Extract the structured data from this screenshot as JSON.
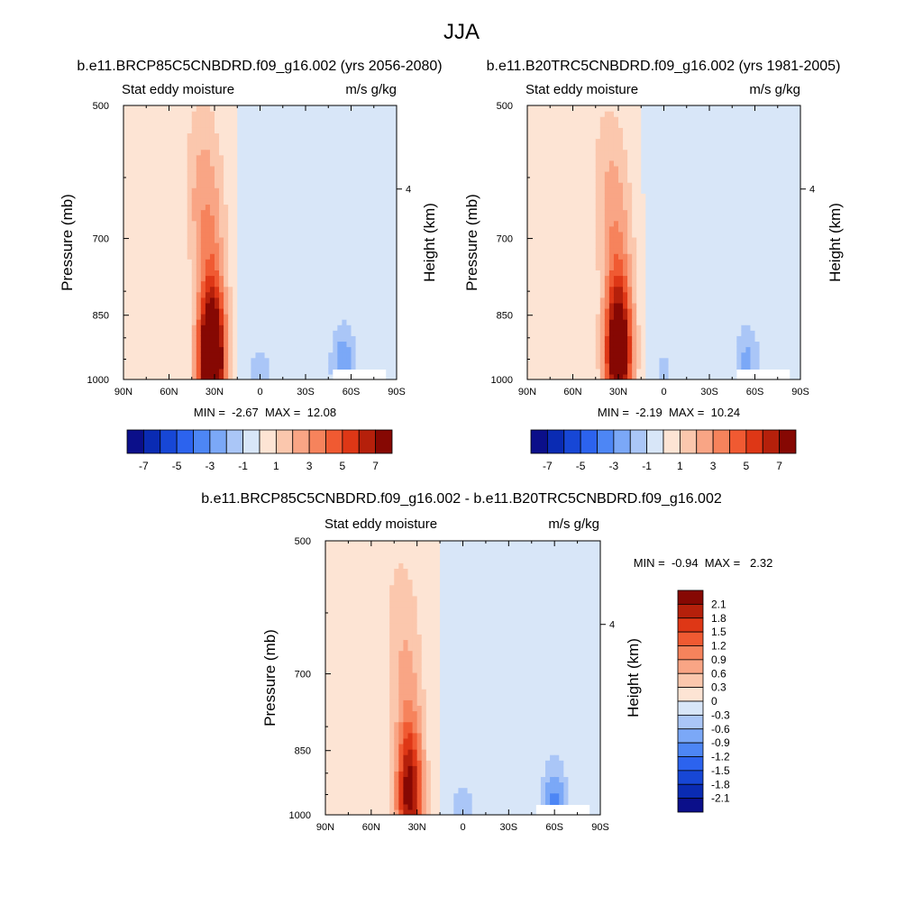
{
  "figure": {
    "title": "JJA"
  },
  "chart_data": [
    {
      "type": "contour",
      "title": "b.e11.BRCP85C5CNBDRD.f09_g16.002 (yrs 2056-2080)",
      "left_label": "Stat eddy moisture",
      "right_label": "m/s g/kg",
      "ylabel": "Pressure (mb)",
      "ylabel_right": "Height (km)",
      "x_ticks": [
        "90N",
        "60N",
        "30N",
        "0",
        "30S",
        "60S",
        "90S"
      ],
      "y_ticks": [
        "500",
        "700",
        "850",
        "1000"
      ],
      "y_right_ticks": [
        "4"
      ],
      "ylim": [
        1000,
        500
      ],
      "xlim": [
        90,
        -90
      ],
      "stats_text": "MIN =  -2.67  MAX =  12.08",
      "min": -2.67,
      "max": 12.08,
      "features": {
        "max_center_lat": 32,
        "max_center_p": 950,
        "min_center_lat": -55,
        "min_center_p": 960
      },
      "colorbar": {
        "orientation": "horizontal",
        "labels": [
          "-7",
          "-5",
          "-3",
          "-1",
          "1",
          "3",
          "5",
          "7"
        ],
        "colors": [
          "#0b0f8a",
          "#0a2bb3",
          "#1747d6",
          "#2c63ee",
          "#4d86f5",
          "#7ba8f7",
          "#aac6f7",
          "#d8e6f8",
          "#fde4d4",
          "#fbc7ad",
          "#f9a585",
          "#f6835c",
          "#f05a32",
          "#de3716",
          "#b5200b",
          "#860803"
        ]
      }
    },
    {
      "type": "contour",
      "title": "b.e11.B20TRC5CNBDRD.f09_g16.002 (yrs 1981-2005)",
      "left_label": "Stat eddy moisture",
      "right_label": "m/s g/kg",
      "ylabel": "Pressure (mb)",
      "ylabel_right": "Height (km)",
      "x_ticks": [
        "90N",
        "60N",
        "30N",
        "0",
        "30S",
        "60S",
        "90S"
      ],
      "y_ticks": [
        "500",
        "700",
        "850",
        "1000"
      ],
      "y_right_ticks": [
        "4"
      ],
      "ylim": [
        1000,
        500
      ],
      "xlim": [
        90,
        -90
      ],
      "stats_text": "MIN =  -2.19  MAX =  10.24",
      "min": -2.19,
      "max": 10.24,
      "features": {
        "max_center_lat": 30,
        "max_center_p": 930,
        "min_center_lat": -55,
        "min_center_p": 960
      },
      "colorbar": {
        "orientation": "horizontal",
        "labels": [
          "-7",
          "-5",
          "-3",
          "-1",
          "1",
          "3",
          "5",
          "7"
        ],
        "colors": [
          "#0b0f8a",
          "#0a2bb3",
          "#1747d6",
          "#2c63ee",
          "#4d86f5",
          "#7ba8f7",
          "#aac6f7",
          "#d8e6f8",
          "#fde4d4",
          "#fbc7ad",
          "#f9a585",
          "#f6835c",
          "#f05a32",
          "#de3716",
          "#b5200b",
          "#860803"
        ]
      }
    },
    {
      "type": "contour",
      "title": "b.e11.BRCP85C5CNBDRD.f09_g16.002 - b.e11.B20TRC5CNBDRD.f09_g16.002",
      "left_label": "Stat eddy moisture",
      "right_label": "m/s g/kg",
      "ylabel": "Pressure (mb)",
      "ylabel_right": "Height (km)",
      "x_ticks": [
        "90N",
        "60N",
        "30N",
        "0",
        "30S",
        "60S",
        "90S"
      ],
      "y_ticks": [
        "500",
        "700",
        "850",
        "1000"
      ],
      "y_right_ticks": [
        "4"
      ],
      "ylim": [
        1000,
        500
      ],
      "xlim": [
        90,
        -90
      ],
      "stats_text": "MIN =  -0.94  MAX =   2.32",
      "min": -0.94,
      "max": 2.32,
      "features": {
        "max_center_lat": 35,
        "max_center_p": 940,
        "min_center_lat": -60,
        "min_center_p": 970
      },
      "colorbar": {
        "orientation": "vertical",
        "labels": [
          "2.1",
          "1.8",
          "1.5",
          "1.2",
          "0.9",
          "0.6",
          "0.3",
          "0",
          "-0.3",
          "-0.6",
          "-0.9",
          "-1.2",
          "-1.5",
          "-1.8",
          "-2.1"
        ],
        "colors": [
          "#860803",
          "#b5200b",
          "#de3716",
          "#f05a32",
          "#f6835c",
          "#f9a585",
          "#fbc7ad",
          "#fde4d4",
          "#d8e6f8",
          "#aac6f7",
          "#7ba8f7",
          "#4d86f5",
          "#2c63ee",
          "#1747d6",
          "#0a2bb3",
          "#0b0f8a"
        ]
      }
    }
  ]
}
